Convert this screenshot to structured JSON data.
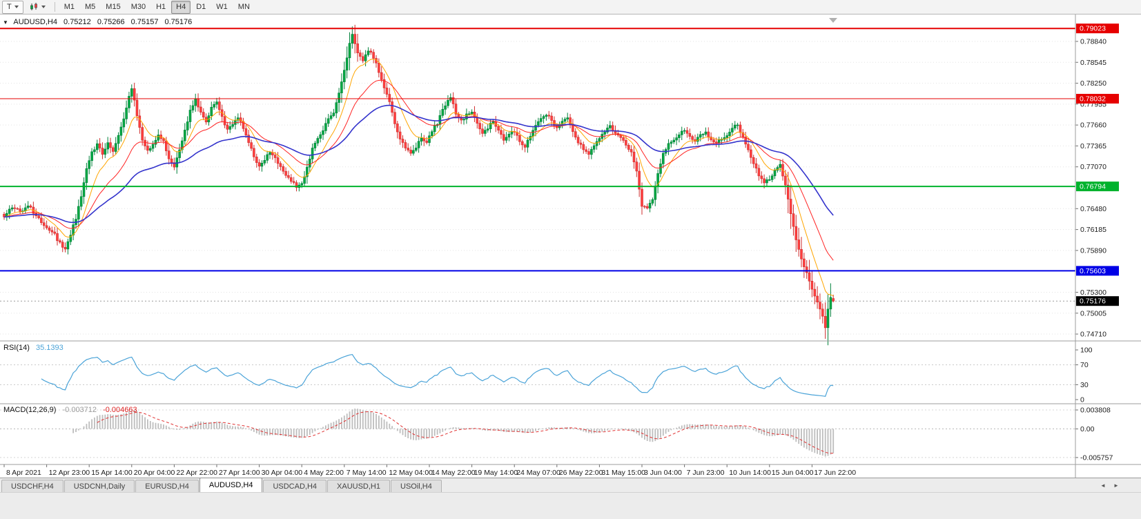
{
  "toolbar": {
    "cursor_tool_label": "T",
    "timeframes": [
      "M1",
      "M5",
      "M15",
      "M30",
      "H1",
      "H4",
      "D1",
      "W1",
      "MN"
    ],
    "active_timeframe": "H4"
  },
  "header": {
    "collapse_icon": "▼",
    "symbol": "AUDUSD,H4",
    "open": "0.75212",
    "high": "0.75266",
    "low": "0.75157",
    "close": "0.75176"
  },
  "chart": {
    "price_axis_ticks": [
      "0.78840",
      "0.78545",
      "0.78250",
      "0.77955",
      "0.77660",
      "0.77365",
      "0.77070",
      "0.76480",
      "0.76185",
      "0.75890",
      "0.75300",
      "0.75005",
      "0.74710"
    ],
    "levels": [
      {
        "value": 0.79023,
        "label": "0.79023",
        "color": "#e60000",
        "width": 2
      },
      {
        "value": 0.78032,
        "label": "0.78032",
        "color": "#e60000",
        "width": 1
      },
      {
        "value": 0.76794,
        "label": "0.76794",
        "color": "#00b22d",
        "width": 2
      },
      {
        "value": 0.75603,
        "label": "0.75603",
        "color": "#0000e6",
        "width": 2
      }
    ],
    "current_price": {
      "value": 0.75176,
      "label": "0.75176",
      "color": "#000000"
    },
    "time_axis": [
      "8 Apr 2021",
      "12 Apr 23:00",
      "15 Apr 14:00",
      "20 Apr 04:00",
      "22 Apr 22:00",
      "27 Apr 14:00",
      "30 Apr 04:00",
      "4 May 22:00",
      "7 May 14:00",
      "12 May 04:00",
      "14 May 22:00",
      "19 May 14:00",
      "24 May 07:00",
      "26 May 22:00",
      "31 May 15:00",
      "3 Jun 04:00",
      "7 Jun 23:00",
      "10 Jun 14:00",
      "15 Jun 04:00",
      "17 Jun 22:00"
    ]
  },
  "rsi_panel": {
    "label": "RSI(14)",
    "value": "35.1393",
    "axis": [
      "100",
      "70",
      "30",
      "0"
    ],
    "level_lines": [
      70,
      30
    ]
  },
  "macd_panel": {
    "label": "MACD(12,26,9)",
    "main_value": "-0.003712",
    "signal_value": "-0.004663",
    "axis": [
      "0.003808",
      "0.00",
      "-0.005757"
    ]
  },
  "tabs": {
    "items": [
      "USDCHF,H4",
      "USDCNH,Daily",
      "EURUSD,H4",
      "AUDUSD,H4",
      "USDCAD,H4",
      "XAUUSD,H1",
      "USOil,H4"
    ],
    "active": "AUDUSD,H4",
    "scroll_left_icon": "◄",
    "scroll_right_icon": "►"
  },
  "colors": {
    "up": "#00a843",
    "up_border": "#00813a",
    "down": "#ff4040",
    "down_border": "#cf2d2d",
    "rsi": "#4aa3d8",
    "macd_hist": "#bdbdbd",
    "macd_signal": "#e03030",
    "grid": "#e3e3e3",
    "separator": "#9c9c9c",
    "axis_text": "#1a1a1a"
  },
  "chart_data": {
    "type": "candlestick+indicators",
    "symbol": "AUDUSD",
    "timeframe": "H4",
    "title": "AUDUSD,H4 0.75212 0.75266 0.75157 0.75176",
    "ylim": [
      0.74613,
      0.7921
    ],
    "ytick_step": 0.00295,
    "candles_per_label": 16,
    "x_labels": [
      "8 Apr 2021",
      "12 Apr 23:00",
      "15 Apr 14:00",
      "20 Apr 04:00",
      "22 Apr 22:00",
      "27 Apr 14:00",
      "30 Apr 04:00",
      "4 May 22:00",
      "7 May 14:00",
      "12 May 04:00",
      "14 May 22:00",
      "19 May 14:00",
      "24 May 07:00",
      "26 May 22:00",
      "31 May 15:00",
      "3 Jun 04:00",
      "7 Jun 23:00",
      "10 Jun 14:00",
      "15 Jun 04:00",
      "17 Jun 22:00"
    ],
    "price_waypoints": [
      [
        0,
        0.7638
      ],
      [
        3,
        0.765
      ],
      [
        6,
        0.7645
      ],
      [
        9,
        0.7652
      ],
      [
        12,
        0.7638
      ],
      [
        15,
        0.7625
      ],
      [
        18,
        0.7615
      ],
      [
        21,
        0.76
      ],
      [
        23,
        0.759
      ],
      [
        25,
        0.7612
      ],
      [
        27,
        0.7635
      ],
      [
        29,
        0.7665
      ],
      [
        31,
        0.7705
      ],
      [
        33,
        0.7728
      ],
      [
        35,
        0.7738
      ],
      [
        37,
        0.7725
      ],
      [
        39,
        0.7742
      ],
      [
        41,
        0.773
      ],
      [
        43,
        0.7752
      ],
      [
        45,
        0.7775
      ],
      [
        47,
        0.7808
      ],
      [
        48,
        0.7818
      ],
      [
        50,
        0.778
      ],
      [
        52,
        0.7745
      ],
      [
        54,
        0.773
      ],
      [
        56,
        0.7738
      ],
      [
        58,
        0.7752
      ],
      [
        60,
        0.7742
      ],
      [
        62,
        0.772
      ],
      [
        64,
        0.7708
      ],
      [
        66,
        0.773
      ],
      [
        68,
        0.7758
      ],
      [
        70,
        0.7785
      ],
      [
        72,
        0.7802
      ],
      [
        74,
        0.7782
      ],
      [
        76,
        0.7772
      ],
      [
        78,
        0.779
      ],
      [
        80,
        0.78
      ],
      [
        82,
        0.7778
      ],
      [
        84,
        0.7758
      ],
      [
        86,
        0.7768
      ],
      [
        88,
        0.7778
      ],
      [
        90,
        0.776
      ],
      [
        92,
        0.7742
      ],
      [
        94,
        0.7722
      ],
      [
        96,
        0.7708
      ],
      [
        98,
        0.7718
      ],
      [
        100,
        0.7728
      ],
      [
        102,
        0.7718
      ],
      [
        104,
        0.7708
      ],
      [
        106,
        0.7695
      ],
      [
        108,
        0.7688
      ],
      [
        110,
        0.7678
      ],
      [
        112,
        0.7682
      ],
      [
        114,
        0.7705
      ],
      [
        116,
        0.7732
      ],
      [
        118,
        0.7748
      ],
      [
        120,
        0.776
      ],
      [
        122,
        0.7775
      ],
      [
        124,
        0.7785
      ],
      [
        126,
        0.7812
      ],
      [
        128,
        0.7845
      ],
      [
        130,
        0.788
      ],
      [
        131,
        0.7893
      ],
      [
        133,
        0.7868
      ],
      [
        135,
        0.7858
      ],
      [
        137,
        0.7872
      ],
      [
        139,
        0.7862
      ],
      [
        141,
        0.7842
      ],
      [
        143,
        0.782
      ],
      [
        145,
        0.7798
      ],
      [
        147,
        0.7768
      ],
      [
        149,
        0.7745
      ],
      [
        151,
        0.7735
      ],
      [
        153,
        0.7725
      ],
      [
        155,
        0.7735
      ],
      [
        157,
        0.7748
      ],
      [
        159,
        0.7742
      ],
      [
        161,
        0.7758
      ],
      [
        163,
        0.7768
      ],
      [
        165,
        0.7788
      ],
      [
        167,
        0.78
      ],
      [
        168,
        0.7806
      ],
      [
        170,
        0.7782
      ],
      [
        172,
        0.7772
      ],
      [
        174,
        0.778
      ],
      [
        176,
        0.7786
      ],
      [
        178,
        0.7768
      ],
      [
        180,
        0.7752
      ],
      [
        182,
        0.7762
      ],
      [
        184,
        0.7772
      ],
      [
        186,
        0.7758
      ],
      [
        188,
        0.7746
      ],
      [
        190,
        0.7752
      ],
      [
        192,
        0.7758
      ],
      [
        194,
        0.7742
      ],
      [
        196,
        0.7736
      ],
      [
        198,
        0.7752
      ],
      [
        200,
        0.7766
      ],
      [
        202,
        0.7776
      ],
      [
        204,
        0.7782
      ],
      [
        206,
        0.7772
      ],
      [
        208,
        0.7762
      ],
      [
        210,
        0.7772
      ],
      [
        212,
        0.7776
      ],
      [
        214,
        0.7756
      ],
      [
        216,
        0.7742
      ],
      [
        218,
        0.7732
      ],
      [
        220,
        0.7726
      ],
      [
        222,
        0.7738
      ],
      [
        224,
        0.7748
      ],
      [
        226,
        0.7756
      ],
      [
        228,
        0.7764
      ],
      [
        230,
        0.7756
      ],
      [
        232,
        0.7748
      ],
      [
        234,
        0.7738
      ],
      [
        236,
        0.7728
      ],
      [
        238,
        0.77
      ],
      [
        240,
        0.7652
      ],
      [
        242,
        0.7648
      ],
      [
        244,
        0.7662
      ],
      [
        246,
        0.7698
      ],
      [
        248,
        0.7728
      ],
      [
        250,
        0.7738
      ],
      [
        252,
        0.7746
      ],
      [
        254,
        0.7752
      ],
      [
        256,
        0.776
      ],
      [
        258,
        0.775
      ],
      [
        260,
        0.7744
      ],
      [
        262,
        0.7752
      ],
      [
        264,
        0.7756
      ],
      [
        266,
        0.7746
      ],
      [
        268,
        0.774
      ],
      [
        270,
        0.7746
      ],
      [
        272,
        0.7752
      ],
      [
        274,
        0.7762
      ],
      [
        276,
        0.7766
      ],
      [
        278,
        0.7748
      ],
      [
        280,
        0.773
      ],
      [
        282,
        0.7712
      ],
      [
        284,
        0.7695
      ],
      [
        286,
        0.7686
      ],
      [
        288,
        0.7688
      ],
      [
        290,
        0.77
      ],
      [
        292,
        0.7712
      ],
      [
        294,
        0.768
      ],
      [
        296,
        0.764
      ],
      [
        298,
        0.7605
      ],
      [
        300,
        0.7578
      ],
      [
        302,
        0.7556
      ],
      [
        304,
        0.7536
      ],
      [
        306,
        0.7516
      ],
      [
        308,
        0.7494
      ],
      [
        309,
        0.7482
      ],
      [
        310,
        0.7505
      ],
      [
        311,
        0.7521
      ],
      [
        312,
        0.75176
      ]
    ],
    "last_candle": {
      "open": 0.75212,
      "high": 0.75266,
      "low": 0.75157,
      "close": 0.75176
    },
    "ma": [
      {
        "period": 10,
        "color": "#ffa500",
        "width": 1
      },
      {
        "period": 24,
        "color": "#ff2222",
        "width": 1
      },
      {
        "period": 55,
        "color": "#3333cc",
        "width": 1.6
      }
    ],
    "rsi": {
      "period": 14,
      "last": 35.1393,
      "levels": [
        70,
        30
      ],
      "range": [
        0,
        100
      ]
    },
    "macd": {
      "fast": 12,
      "slow": 26,
      "signal": 9,
      "main_last": -0.003712,
      "signal_last": -0.004663,
      "axis_values": [
        0.003808,
        0.0,
        -0.005757
      ]
    },
    "horizontal_levels": [
      0.79023,
      0.78032,
      0.76794,
      0.75603
    ],
    "current_close": 0.75176
  }
}
